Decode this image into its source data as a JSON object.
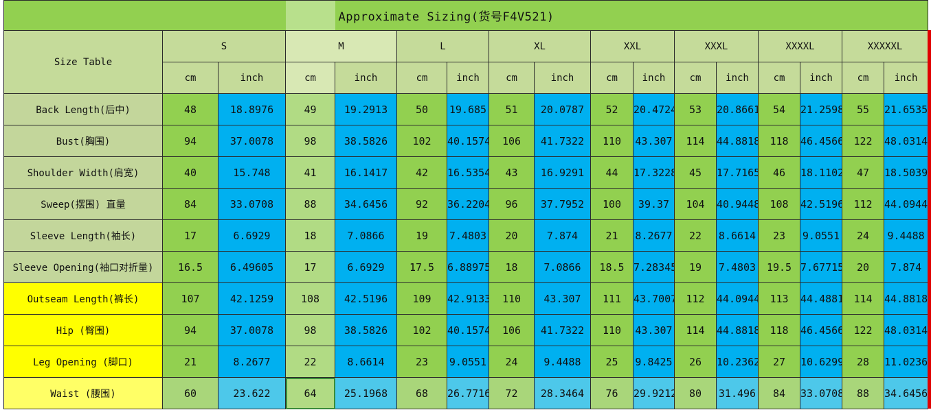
{
  "title": "Approximate Sizing(货号F4V521)",
  "corner_label": "Size Table",
  "sizes": [
    "S",
    "M",
    "L",
    "XL",
    "XXL",
    "XXXL",
    "XXXXL",
    "XXXXXL"
  ],
  "unit_labels": {
    "cm": "cm",
    "inch": "inch"
  },
  "rows": [
    {
      "label": "Back Length(后中)",
      "cm": [
        "48",
        "49",
        "50",
        "51",
        "52",
        "53",
        "54",
        "55"
      ],
      "inch": [
        "18.8976",
        "19.2913",
        "19.685",
        "20.0787",
        "20.4724",
        "20.8661",
        "21.2598",
        "21.6535"
      ]
    },
    {
      "label": "Bust(胸围)",
      "cm": [
        "94",
        "98",
        "102",
        "106",
        "110",
        "114",
        "118",
        "122"
      ],
      "inch": [
        "37.0078",
        "38.5826",
        "40.1574",
        "41.7322",
        "43.307",
        "44.8818",
        "46.4566",
        "48.0314"
      ]
    },
    {
      "label": "Shoulder Width(肩宽)",
      "cm": [
        "40",
        "41",
        "42",
        "43",
        "44",
        "45",
        "46",
        "47"
      ],
      "inch": [
        "15.748",
        "16.1417",
        "16.5354",
        "16.9291",
        "17.3228",
        "17.7165",
        "18.1102",
        "18.5039"
      ]
    },
    {
      "label": "Sweep(摆围) 直量",
      "cm": [
        "84",
        "88",
        "92",
        "96",
        "100",
        "104",
        "108",
        "112"
      ],
      "inch": [
        "33.0708",
        "34.6456",
        "36.2204",
        "37.7952",
        "39.37",
        "40.9448",
        "42.5196",
        "44.0944"
      ]
    },
    {
      "label": "Sleeve Length(袖长)",
      "cm": [
        "17",
        "18",
        "19",
        "20",
        "21",
        "22",
        "23",
        "24"
      ],
      "inch": [
        "6.6929",
        "7.0866",
        "7.4803",
        "7.874",
        "8.2677",
        "8.6614",
        "9.0551",
        "9.4488"
      ]
    },
    {
      "label": "Sleeve Opening(袖口对折量)",
      "cm": [
        "16.5",
        "17",
        "17.5",
        "18",
        "18.5",
        "19",
        "19.5",
        "20"
      ],
      "inch": [
        "6.49605",
        "6.6929",
        "6.88975",
        "7.0866",
        "7.28345",
        "7.4803",
        "7.67715",
        "7.874"
      ]
    },
    {
      "label": "Outseam Length(裤长)",
      "cm": [
        "107",
        "108",
        "109",
        "110",
        "111",
        "112",
        "113",
        "114"
      ],
      "inch": [
        "42.1259",
        "42.5196",
        "42.9133",
        "43.307",
        "43.7007",
        "44.0944",
        "44.4881",
        "44.8818"
      ]
    },
    {
      "label": "Hip (臀围)",
      "cm": [
        "94",
        "98",
        "102",
        "106",
        "110",
        "114",
        "118",
        "122"
      ],
      "inch": [
        "37.0078",
        "38.5826",
        "40.1574",
        "41.7322",
        "43.307",
        "44.8818",
        "46.4566",
        "48.0314"
      ]
    },
    {
      "label": "Leg Opening (脚口)",
      "cm": [
        "21",
        "22",
        "23",
        "24",
        "25",
        "26",
        "27",
        "28"
      ],
      "inch": [
        "8.2677",
        "8.6614",
        "9.0551",
        "9.4488",
        "9.8425",
        "10.2362",
        "10.6299",
        "11.0236"
      ]
    },
    {
      "label": "Waist (腰围)",
      "cm": [
        "60",
        "64",
        "68",
        "72",
        "76",
        "80",
        "84",
        "88"
      ],
      "inch": [
        "23.622",
        "25.1968",
        "26.7716",
        "28.3464",
        "29.9212",
        "31.496",
        "33.0708",
        "34.6456"
      ]
    }
  ],
  "colors": {
    "title_bg": "#92d050",
    "header_bg": "#c5db9a",
    "label_bg": "#c3d69b",
    "label_yellow": "#ffff00",
    "cm_bg": "#92d050",
    "inch_bg": "#00b0f0",
    "edge_red": "#e00000"
  }
}
